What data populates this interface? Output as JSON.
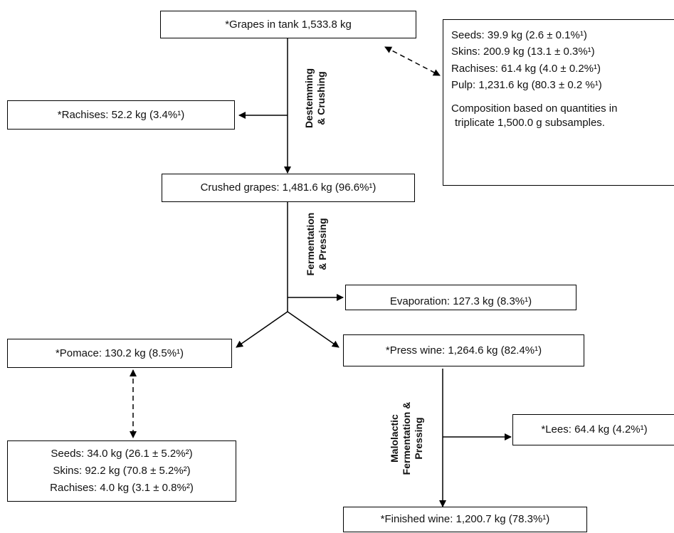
{
  "boxes": {
    "grapes_tank": "*Grapes in tank 1,533.8 kg",
    "composition_top": {
      "seeds": "Seeds: 39.9 kg (2.6 ± 0.1%¹)",
      "skins": "Skins: 200.9 kg (13.1 ± 0.3%¹)",
      "rachises": "Rachises:  61.4 kg (4.0 ± 0.2%¹)",
      "pulp": "Pulp: 1,231.6 kg (80.3 ± 0.2 %¹)",
      "note_line1": "Composition  based on quantities in",
      "note_line2": "triplicate 1,500.0 g subsamples."
    },
    "rachises_removed": "*Rachises: 52.2 kg (3.4%¹)",
    "crushed_grapes": "Crushed grapes: 1,481.6 kg (96.6%¹)",
    "evaporation": "Evaporation: 127.3 kg (8.3%¹)",
    "pomace": "*Pomace: 130.2 kg (8.5%¹)",
    "press_wine": "*Press wine: 1,264.6 kg (82.4%¹)",
    "lees": "*Lees: 64.4 kg (4.2%¹)",
    "composition_pomace": {
      "seeds": "Seeds: 34.0 kg (26.1 ± 5.2%²)",
      "skins": "Skins: 92.2 kg (70.8 ± 5.2%²)",
      "rachises": "Rachises: 4.0 kg (3.1 ± 0.8%²)"
    },
    "finished_wine": "*Finished wine: 1,200.7 kg (78.3%¹)"
  },
  "process_labels": {
    "destemming_line1": "Destemming",
    "destemming_line2": "& Crushing",
    "fermentation_line1": "Fermentation",
    "fermentation_line2": "& Pressing",
    "malolactic_line1": "Malolactic",
    "malolactic_line2": "Fermentation  &",
    "malolactic_line3": "Pressing"
  }
}
